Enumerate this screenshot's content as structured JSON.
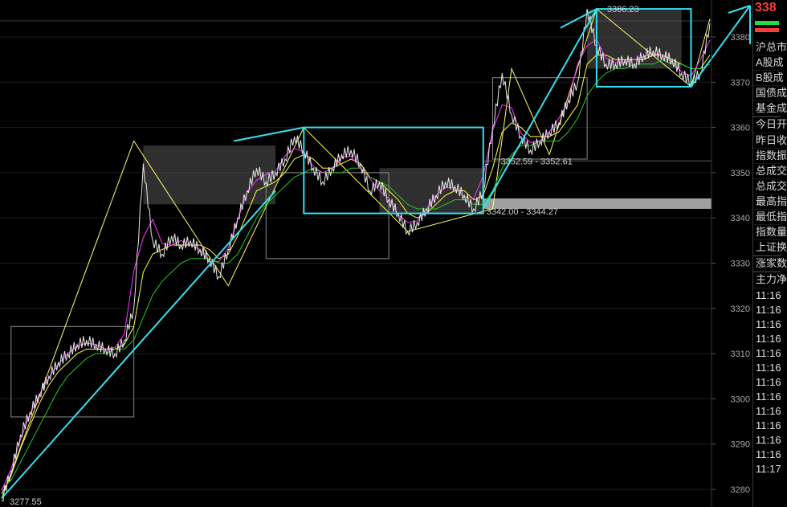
{
  "chart_data": {
    "type": "line",
    "title": "",
    "xlabel": "",
    "ylabel": "",
    "ylim": [
      3277,
      3388
    ],
    "y_ticks": [
      "3280",
      "3290",
      "3300",
      "3310",
      "3320",
      "3330",
      "3340",
      "3350",
      "3360",
      "3370",
      "3380"
    ],
    "series": [
      {
        "values": [
          3277.6,
          3284,
          3292,
          3297,
          3301,
          3305,
          3308,
          3310,
          3312,
          3313,
          3312,
          3311,
          3310,
          3313,
          3320,
          3352,
          3335,
          3332,
          3336,
          3334,
          3335,
          3333,
          3331,
          3327,
          3333,
          3340,
          3346,
          3351,
          3348,
          3350,
          3353,
          3358,
          3355,
          3351,
          3348,
          3351,
          3354,
          3355,
          3352,
          3346,
          3348,
          3344,
          3341,
          3337,
          3339,
          3342,
          3345,
          3348,
          3347,
          3345,
          3342,
          3346,
          3360,
          3372,
          3363,
          3358,
          3355,
          3357,
          3359,
          3361,
          3366,
          3370,
          3386.2,
          3378,
          3374,
          3374,
          3375,
          3374,
          3376,
          3377,
          3376,
          3375,
          3372,
          3370,
          3372,
          3383
        ]
      },
      {
        "values": [
          3279,
          3283,
          3289,
          3294,
          3299,
          3303,
          3306,
          3308,
          3310,
          3311,
          3311,
          3311,
          3311,
          3312,
          3316,
          3328,
          3332,
          3333,
          3334,
          3334,
          3334,
          3334,
          3333,
          3331,
          3332,
          3336,
          3341,
          3346,
          3347,
          3348,
          3350,
          3353,
          3354,
          3353,
          3351,
          3351,
          3352,
          3353,
          3352,
          3349,
          3348,
          3346,
          3344,
          3341,
          3340,
          3341,
          3343,
          3345,
          3346,
          3346,
          3344,
          3345,
          3351,
          3359,
          3361,
          3360,
          3358,
          3358,
          3358,
          3359,
          3362,
          3365,
          3374,
          3376,
          3376,
          3375,
          3375,
          3375,
          3375,
          3376,
          3376,
          3375,
          3374,
          3373,
          3373,
          3376
        ]
      },
      {
        "values": [
          3280,
          3282,
          3286,
          3290,
          3294,
          3298,
          3302,
          3305,
          3307,
          3309,
          3310,
          3310,
          3311,
          3311,
          3313,
          3318,
          3323,
          3326,
          3328,
          3330,
          3331,
          3331,
          3331,
          3330,
          3330,
          3332,
          3336,
          3340,
          3343,
          3345,
          3347,
          3349,
          3350,
          3351,
          3350,
          3350,
          3350,
          3351,
          3351,
          3349,
          3348,
          3347,
          3345,
          3343,
          3342,
          3342,
          3342,
          3343,
          3344,
          3344,
          3343,
          3343,
          3346,
          3351,
          3354,
          3356,
          3356,
          3357,
          3357,
          3357,
          3359,
          3362,
          3367,
          3370,
          3372,
          3373,
          3373,
          3374,
          3374,
          3374,
          3375,
          3374,
          3374,
          3373,
          3373,
          3374
        ]
      }
    ],
    "annotations": [
      "3386.23",
      "3352.59 - 3352.61",
      "3342.00 - 3344.27",
      "3277.55"
    ]
  },
  "colors": {
    "price": "#e8e8e8",
    "ma_fast": "#ff33ff",
    "ma_mid": "#ffff44",
    "ma_slow": "#22cc22",
    "trend": "#33e0f0",
    "zigzag": "#ffff66",
    "box": "#8a8a8a",
    "zone": "#555555",
    "up": "#ff3b3b",
    "down": "#22dd44"
  },
  "side": {
    "price": "338",
    "rows": [
      "沪总市",
      "A股成",
      "B股成",
      "国债成",
      "基金成",
      "今日开",
      "昨日收",
      "指数振",
      "总成交",
      "总成交",
      "最高指",
      "最低指",
      "指数量",
      "上证换",
      "涨家数",
      "主力净"
    ],
    "times": [
      "11:16",
      "11:16",
      "11:16",
      "11:16",
      "11:16",
      "11:16",
      "11:16",
      "11:16",
      "11:16",
      "11:16",
      "11:16",
      "11:16",
      "11:17"
    ]
  }
}
